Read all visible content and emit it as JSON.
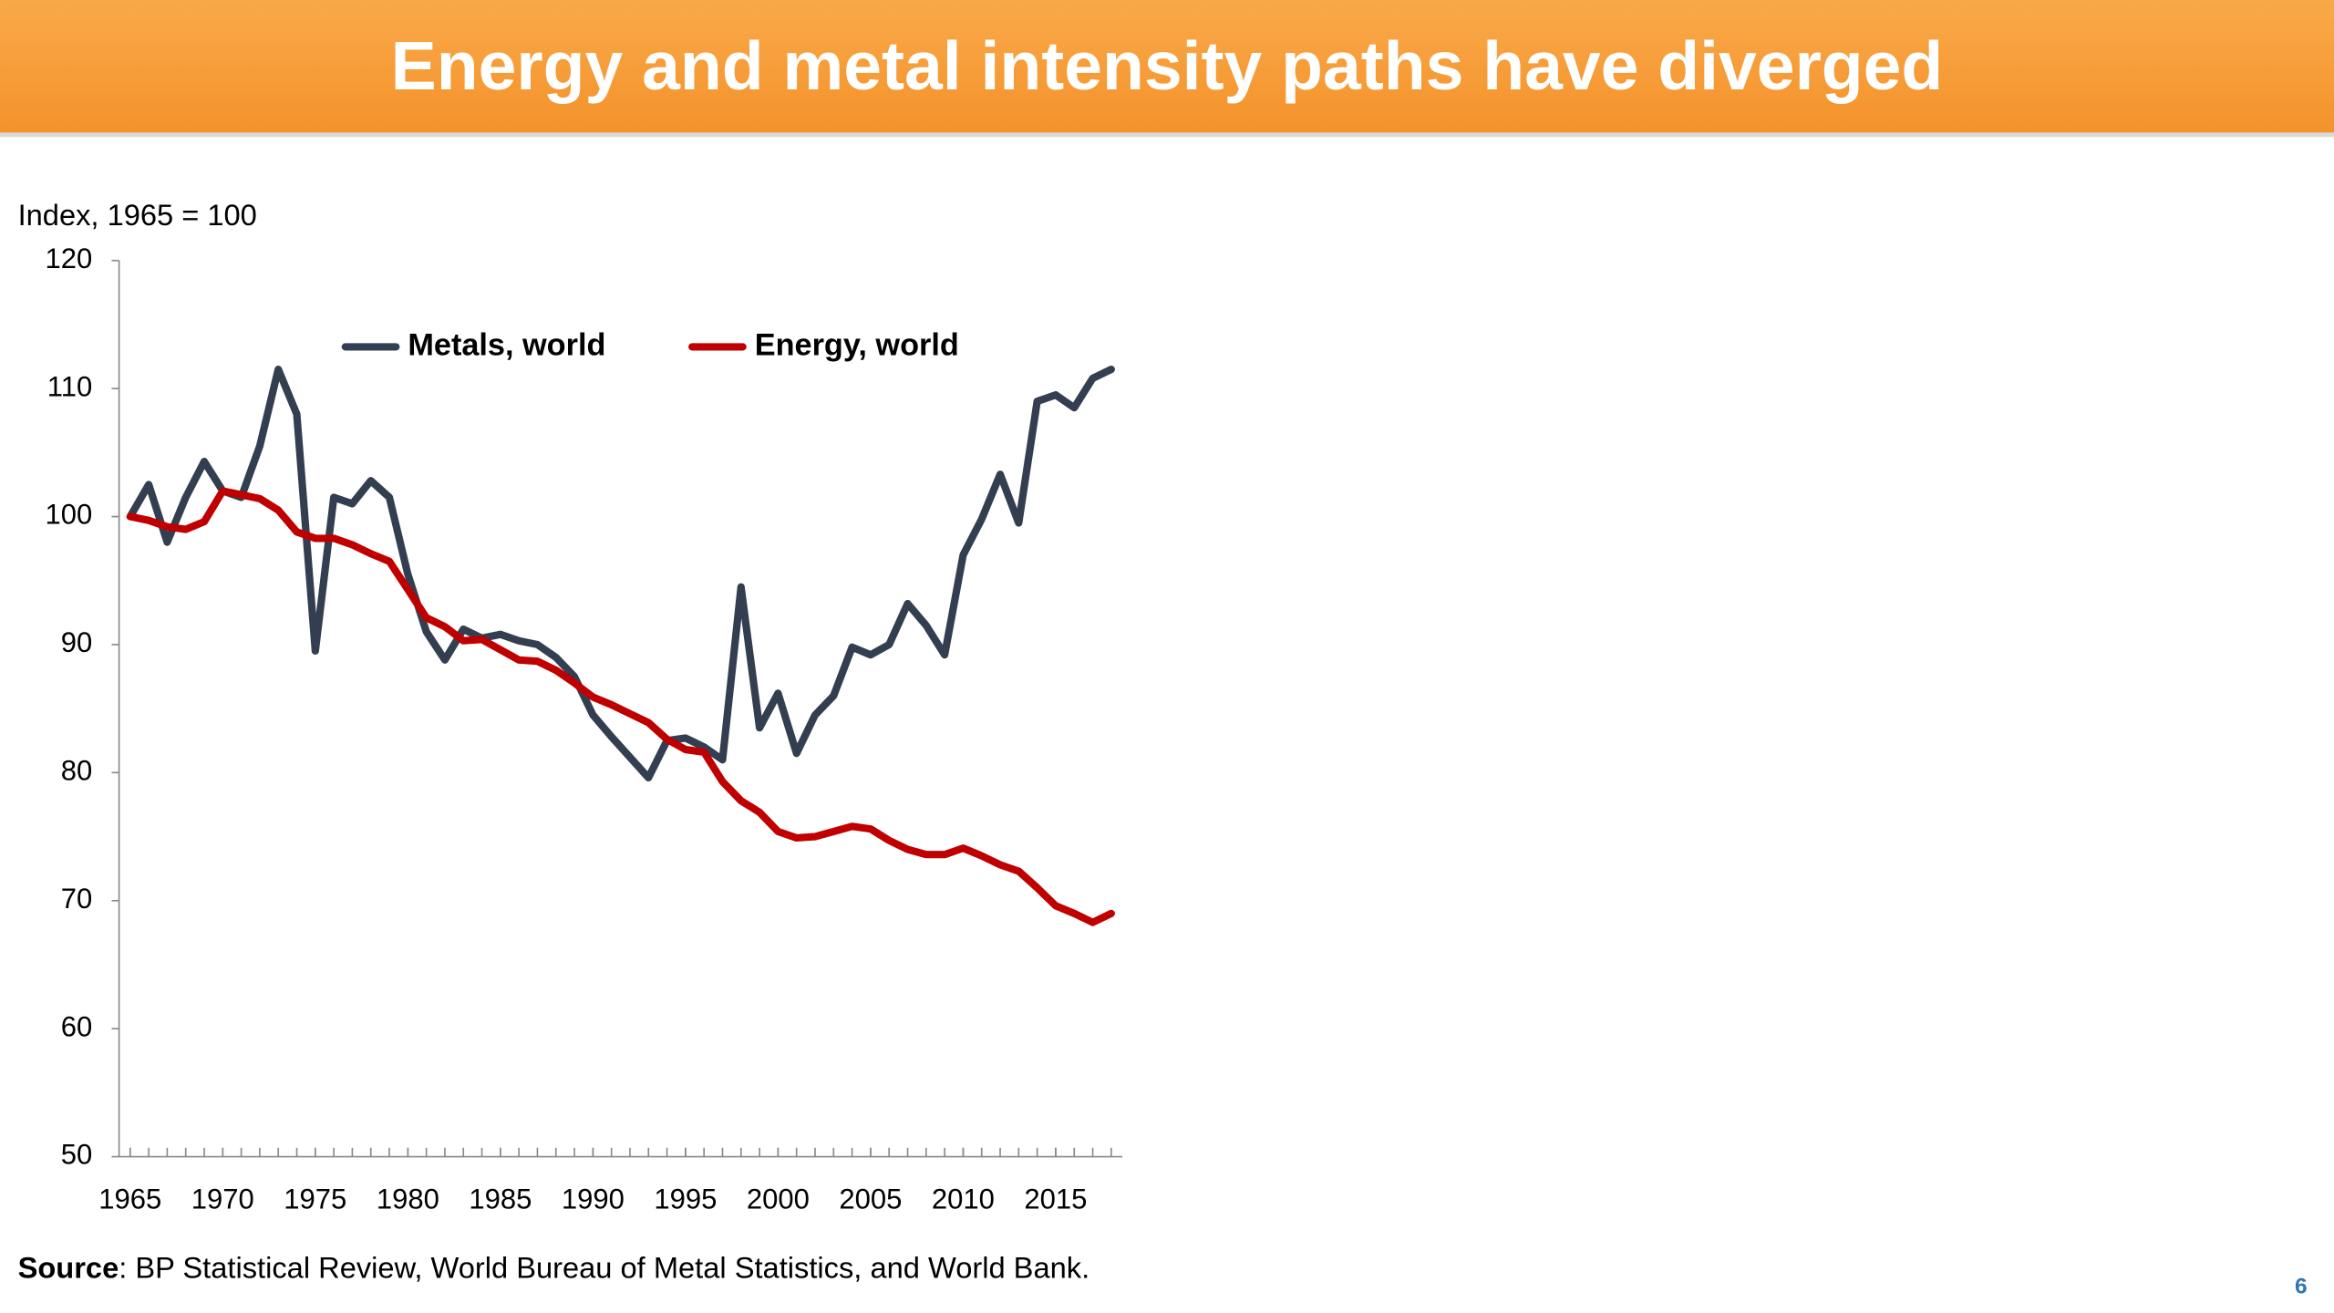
{
  "chart_data": {
    "type": "line",
    "title": "Energy and metal intensity paths have diverged",
    "y_label": "Index, 1965 = 100",
    "source_label": "Source",
    "source_text": ": BP Statistical Review, World Bureau of Metal Statistics, and World Bank.",
    "page_number": "6",
    "x": [
      1965,
      1966,
      1967,
      1968,
      1969,
      1970,
      1971,
      1972,
      1973,
      1974,
      1975,
      1976,
      1977,
      1978,
      1979,
      1980,
      1981,
      1982,
      1983,
      1984,
      1985,
      1986,
      1987,
      1988,
      1989,
      1990,
      1991,
      1992,
      1993,
      1994,
      1995,
      1996,
      1997,
      1998,
      1999,
      2000,
      2001,
      2002,
      2003,
      2004,
      2005,
      2006,
      2007,
      2008,
      2009,
      2010,
      2011,
      2012,
      2013,
      2014,
      2015,
      2016,
      2017,
      2018
    ],
    "series": [
      {
        "name": "Metals, world",
        "color": "#333f50",
        "values": [
          100,
          102.5,
          98,
          101.5,
          104.3,
          102,
          101.5,
          105.5,
          111.5,
          108,
          89.5,
          101.5,
          101,
          102.8,
          101.5,
          95.5,
          91,
          88.8,
          91.2,
          90.5,
          90.8,
          90.3,
          90,
          89,
          87.5,
          84.5,
          82.8,
          81.2,
          79.6,
          82.5,
          82.7,
          82,
          81,
          94.5,
          83.5,
          86.2,
          81.5,
          84.5,
          86,
          89.8,
          89.2,
          90,
          93.2,
          91.5,
          89.2,
          97,
          99.8,
          103.3,
          99.5,
          109,
          109.5,
          108.5,
          110.8,
          111.5
        ]
      },
      {
        "name": "Energy, world",
        "color": "#c00000",
        "values": [
          100,
          99.7,
          99.2,
          99,
          99.6,
          102,
          101.7,
          101.4,
          100.5,
          98.8,
          98.3,
          98.3,
          97.8,
          97.1,
          96.5,
          94.3,
          92.1,
          91.4,
          90.3,
          90.4,
          89.6,
          88.8,
          88.7,
          88,
          87,
          85.9,
          85.3,
          84.6,
          83.9,
          82.6,
          81.8,
          81.6,
          79.3,
          77.8,
          76.9,
          75.4,
          74.9,
          75,
          75.4,
          75.8,
          75.6,
          74.7,
          74,
          73.6,
          73.6,
          74.1,
          73.5,
          72.8,
          72.3,
          71,
          69.6,
          69,
          68.3,
          69
        ]
      }
    ],
    "xlim": [
      1964.4,
      2018.6
    ],
    "xticks": [
      1965,
      1970,
      1975,
      1980,
      1985,
      1990,
      1995,
      2000,
      2005,
      2010,
      2015
    ],
    "ylim": [
      50,
      120
    ],
    "yticks": [
      50,
      60,
      70,
      80,
      90,
      100,
      110,
      120
    ],
    "grid": false
  }
}
